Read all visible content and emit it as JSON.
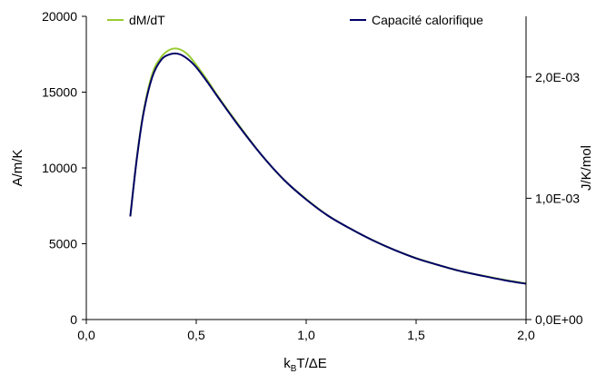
{
  "chart_data": {
    "type": "line",
    "xlabel": {
      "base": "k",
      "sub": "B",
      "rest": "T/ΔE"
    },
    "ylabel_left": "A/m/K",
    "ylabel_right": "J/K/mol",
    "xlim": [
      0,
      2
    ],
    "ylim_left": [
      0,
      20000
    ],
    "ylim_right": [
      0,
      0.0025
    ],
    "x_ticks": [
      0,
      0.5,
      1.0,
      1.5,
      2.0
    ],
    "x_tick_labels": [
      "0,0",
      "0,5",
      "1,0",
      "1,5",
      "2,0"
    ],
    "y_ticks_left": [
      0,
      5000,
      10000,
      15000,
      20000
    ],
    "y_tick_labels_left": [
      "0",
      "5000",
      "10000",
      "15000",
      "20000"
    ],
    "y_ticks_right": [
      0,
      0.001,
      0.002
    ],
    "y_tick_labels_right": [
      "0,0E+00",
      "1,0E-03",
      "2,0E-03"
    ],
    "grid": false,
    "legend": "top",
    "series": [
      {
        "name": "dM/dT",
        "axis": "left",
        "color": "#99cc33",
        "x": [
          0.2,
          0.23,
          0.26,
          0.3,
          0.34,
          0.38,
          0.42,
          0.46,
          0.5,
          0.55,
          0.6,
          0.7,
          0.8,
          0.9,
          1.0,
          1.1,
          1.2,
          1.3,
          1.4,
          1.5,
          1.6,
          1.7,
          1.8,
          1.9,
          2.0
        ],
        "y": [
          6800,
          10700,
          13700,
          16200,
          17300,
          17800,
          17850,
          17500,
          16800,
          15800,
          14700,
          12700,
          10800,
          9200,
          7950,
          6850,
          6000,
          5250,
          4600,
          4050,
          3600,
          3200,
          2900,
          2620,
          2380
        ]
      },
      {
        "name": "Capacité calorifique",
        "axis": "right",
        "color": "#000066",
        "x": [
          0.2,
          0.23,
          0.26,
          0.3,
          0.34,
          0.38,
          0.42,
          0.46,
          0.5,
          0.55,
          0.6,
          0.7,
          0.8,
          0.9,
          1.0,
          1.1,
          1.2,
          1.3,
          1.4,
          1.5,
          1.6,
          1.7,
          1.8,
          1.9,
          2.0
        ],
        "y": [
          0.00085,
          0.00133,
          0.0017,
          0.002,
          0.00214,
          0.002187,
          0.00219,
          0.00215,
          0.00208,
          0.00196,
          0.00183,
          0.00158,
          0.00135,
          0.00115,
          0.00099,
          0.000855,
          0.00075,
          0.000656,
          0.000575,
          0.000505,
          0.00045,
          0.0004,
          0.000361,
          0.000325,
          0.000295
        ]
      }
    ]
  }
}
